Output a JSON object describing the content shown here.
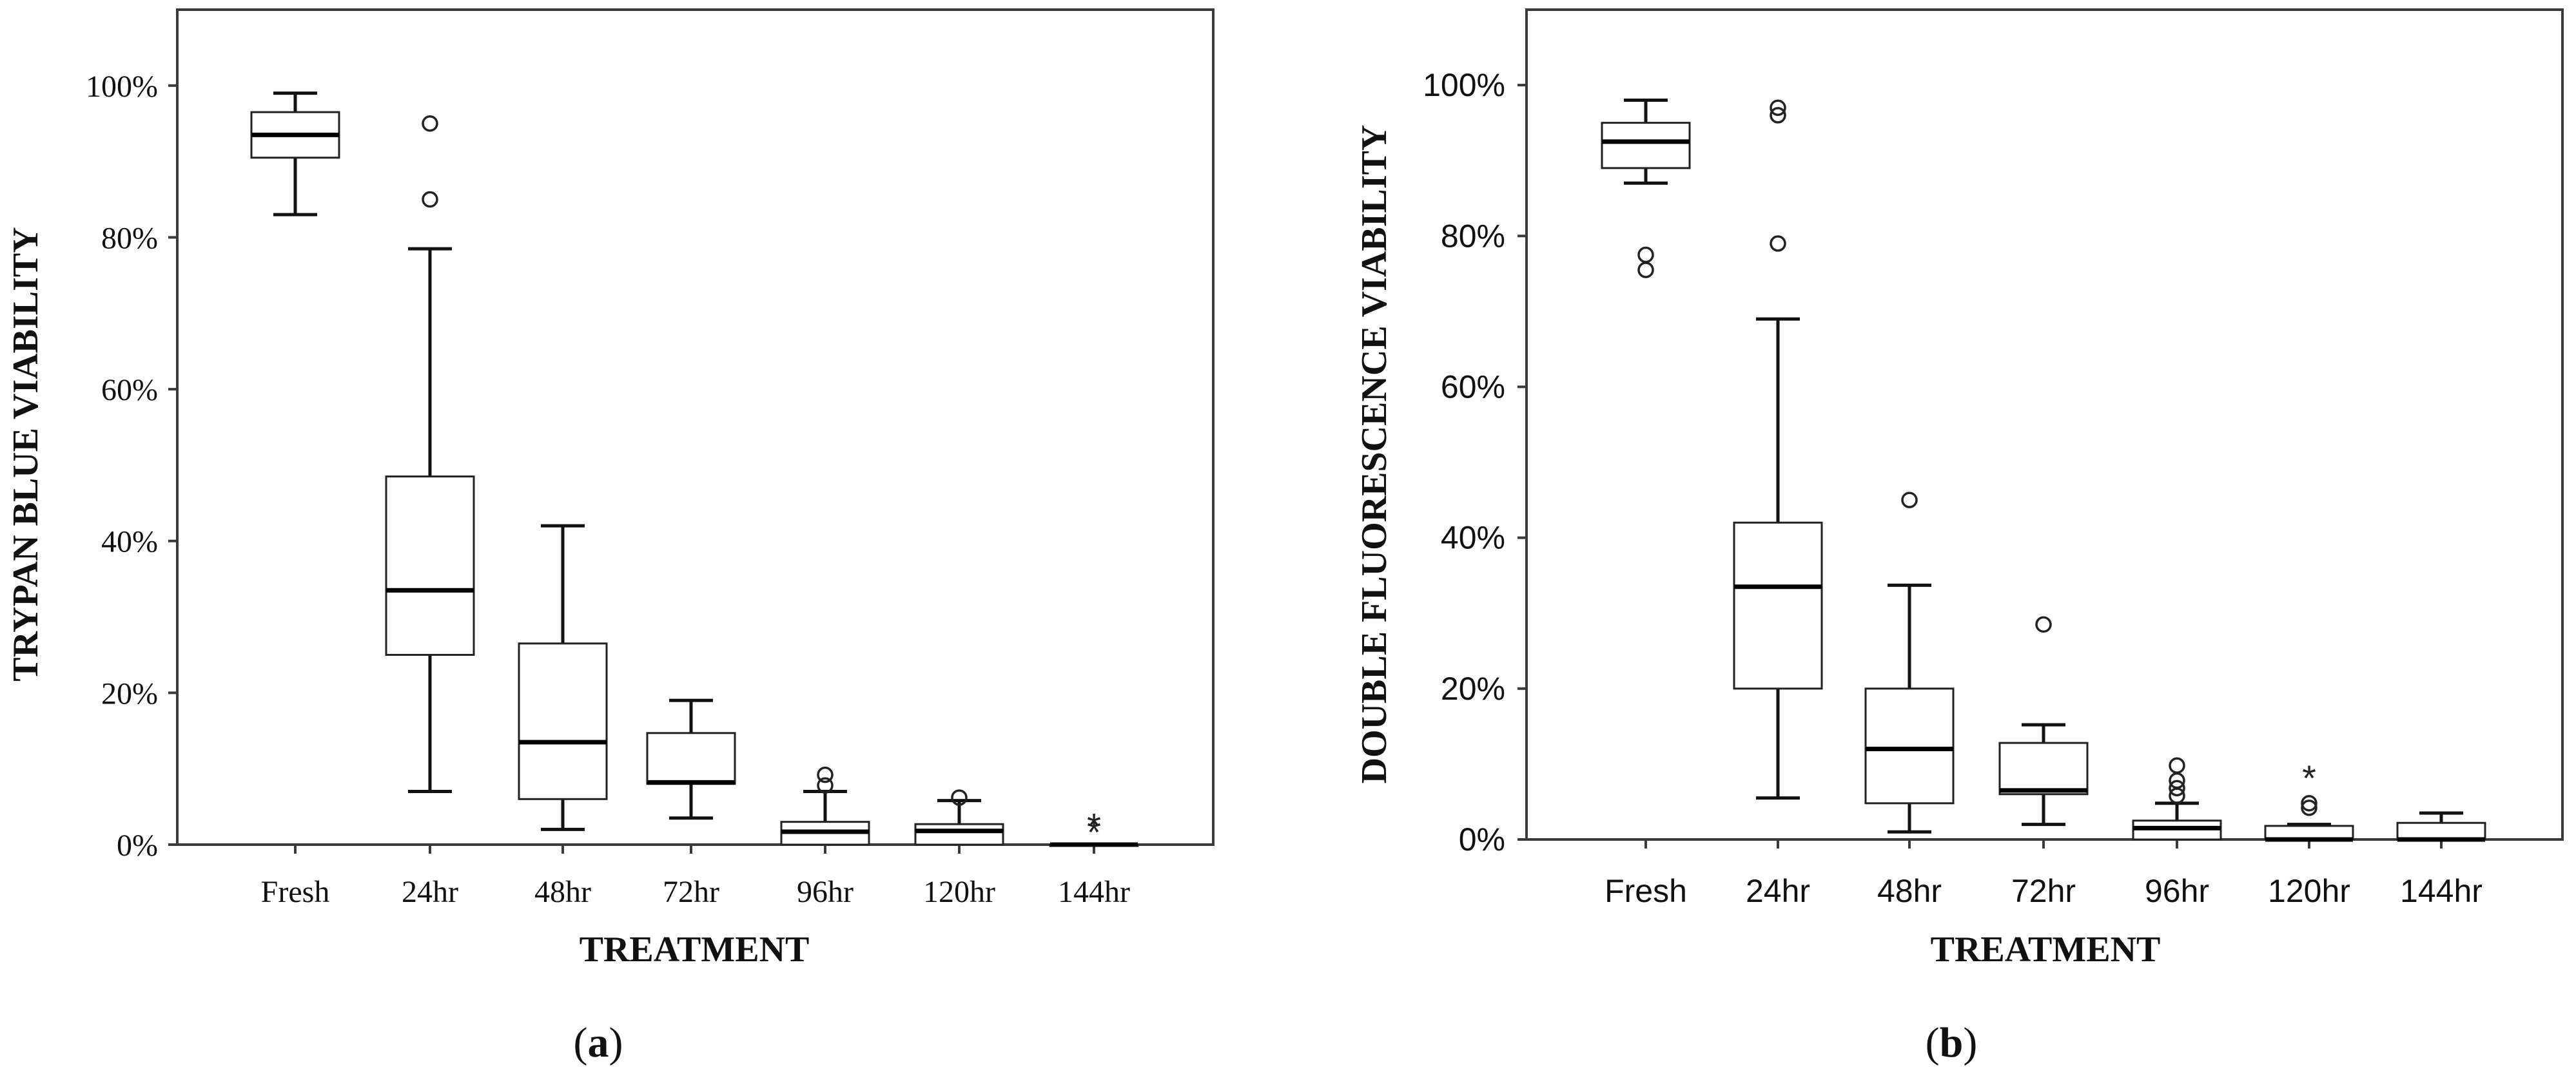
{
  "chart_data": [
    {
      "type": "boxplot",
      "panel_label": "(a)",
      "panel_letter": "a",
      "ylabel": "TRYPAN BLUE VIABILITY",
      "xlabel": "TREATMENT",
      "ylim": [
        0,
        1.1
      ],
      "yticks": [
        0,
        0.2,
        0.4,
        0.6,
        0.8,
        1.0
      ],
      "ytick_labels": [
        "0%",
        "20%",
        "40%",
        "60%",
        "80%",
        "100%"
      ],
      "categories": [
        "Fresh",
        "24hr",
        "48hr",
        "72hr",
        "96hr",
        "120hr",
        "144hr"
      ],
      "boxes": [
        {
          "category": "Fresh",
          "min": 0.83,
          "q1": 0.905,
          "median": 0.935,
          "q3": 0.965,
          "max": 0.99,
          "outliers": [],
          "extremes": []
        },
        {
          "category": "24hr",
          "min": 0.07,
          "q1": 0.25,
          "median": 0.335,
          "q3": 0.485,
          "max": 0.785,
          "outliers": [
            0.85,
            0.95
          ],
          "extremes": []
        },
        {
          "category": "48hr",
          "min": 0.02,
          "q1": 0.06,
          "median": 0.135,
          "q3": 0.265,
          "max": 0.42,
          "outliers": [],
          "extremes": []
        },
        {
          "category": "72hr",
          "min": 0.035,
          "q1": 0.08,
          "median": 0.082,
          "q3": 0.147,
          "max": 0.19,
          "outliers": [],
          "extremes": []
        },
        {
          "category": "96hr",
          "min": 0.0,
          "q1": 0.0,
          "median": 0.017,
          "q3": 0.03,
          "max": 0.07,
          "outliers": [
            0.078,
            0.092
          ],
          "extremes": []
        },
        {
          "category": "120hr",
          "min": 0.0,
          "q1": 0.0,
          "median": 0.018,
          "q3": 0.027,
          "max": 0.058,
          "outliers": [
            0.062
          ],
          "extremes": []
        },
        {
          "category": "144hr",
          "min": 0.0,
          "q1": 0.0,
          "median": 0.0,
          "q3": 0.0,
          "max": 0.0,
          "outliers": [],
          "extremes": [
            0.022,
            0.03
          ]
        }
      ]
    },
    {
      "type": "boxplot",
      "panel_label": "(b)",
      "panel_letter": "b",
      "ylabel": "DOUBLE FLUORESCENCE VIABILITY",
      "xlabel": "TREATMENT",
      "ylim": [
        0,
        1.1
      ],
      "yticks": [
        0,
        0.2,
        0.4,
        0.6,
        0.8,
        1.0
      ],
      "ytick_labels": [
        "0%",
        "20%",
        "40%",
        "60%",
        "80%",
        "100%"
      ],
      "categories": [
        "Fresh",
        "24hr",
        "48hr",
        "72hr",
        "96hr",
        "120hr",
        "144hr"
      ],
      "boxes": [
        {
          "category": "Fresh",
          "min": 0.87,
          "q1": 0.89,
          "median": 0.925,
          "q3": 0.95,
          "max": 0.98,
          "outliers": [
            0.755,
            0.775
          ],
          "extremes": []
        },
        {
          "category": "24hr",
          "min": 0.055,
          "q1": 0.2,
          "median": 0.335,
          "q3": 0.42,
          "max": 0.69,
          "outliers": [
            0.79,
            0.96,
            0.97
          ],
          "extremes": []
        },
        {
          "category": "48hr",
          "min": 0.01,
          "q1": 0.048,
          "median": 0.12,
          "q3": 0.2,
          "max": 0.337,
          "outliers": [
            0.45
          ],
          "extremes": []
        },
        {
          "category": "72hr",
          "min": 0.02,
          "q1": 0.06,
          "median": 0.065,
          "q3": 0.128,
          "max": 0.152,
          "outliers": [
            0.285
          ],
          "extremes": []
        },
        {
          "category": "96hr",
          "min": 0.0,
          "q1": 0.0,
          "median": 0.015,
          "q3": 0.025,
          "max": 0.048,
          "outliers": [
            0.058,
            0.068,
            0.078,
            0.098
          ],
          "extremes": []
        },
        {
          "category": "120hr",
          "min": 0.0,
          "q1": 0.0,
          "median": 0.0,
          "q3": 0.018,
          "max": 0.02,
          "outliers": [
            0.042,
            0.048
          ],
          "extremes": [
            0.087
          ]
        },
        {
          "category": "144hr",
          "min": 0.0,
          "q1": 0.0,
          "median": 0.0,
          "q3": 0.022,
          "max": 0.035,
          "outliers": [],
          "extremes": []
        }
      ]
    }
  ]
}
